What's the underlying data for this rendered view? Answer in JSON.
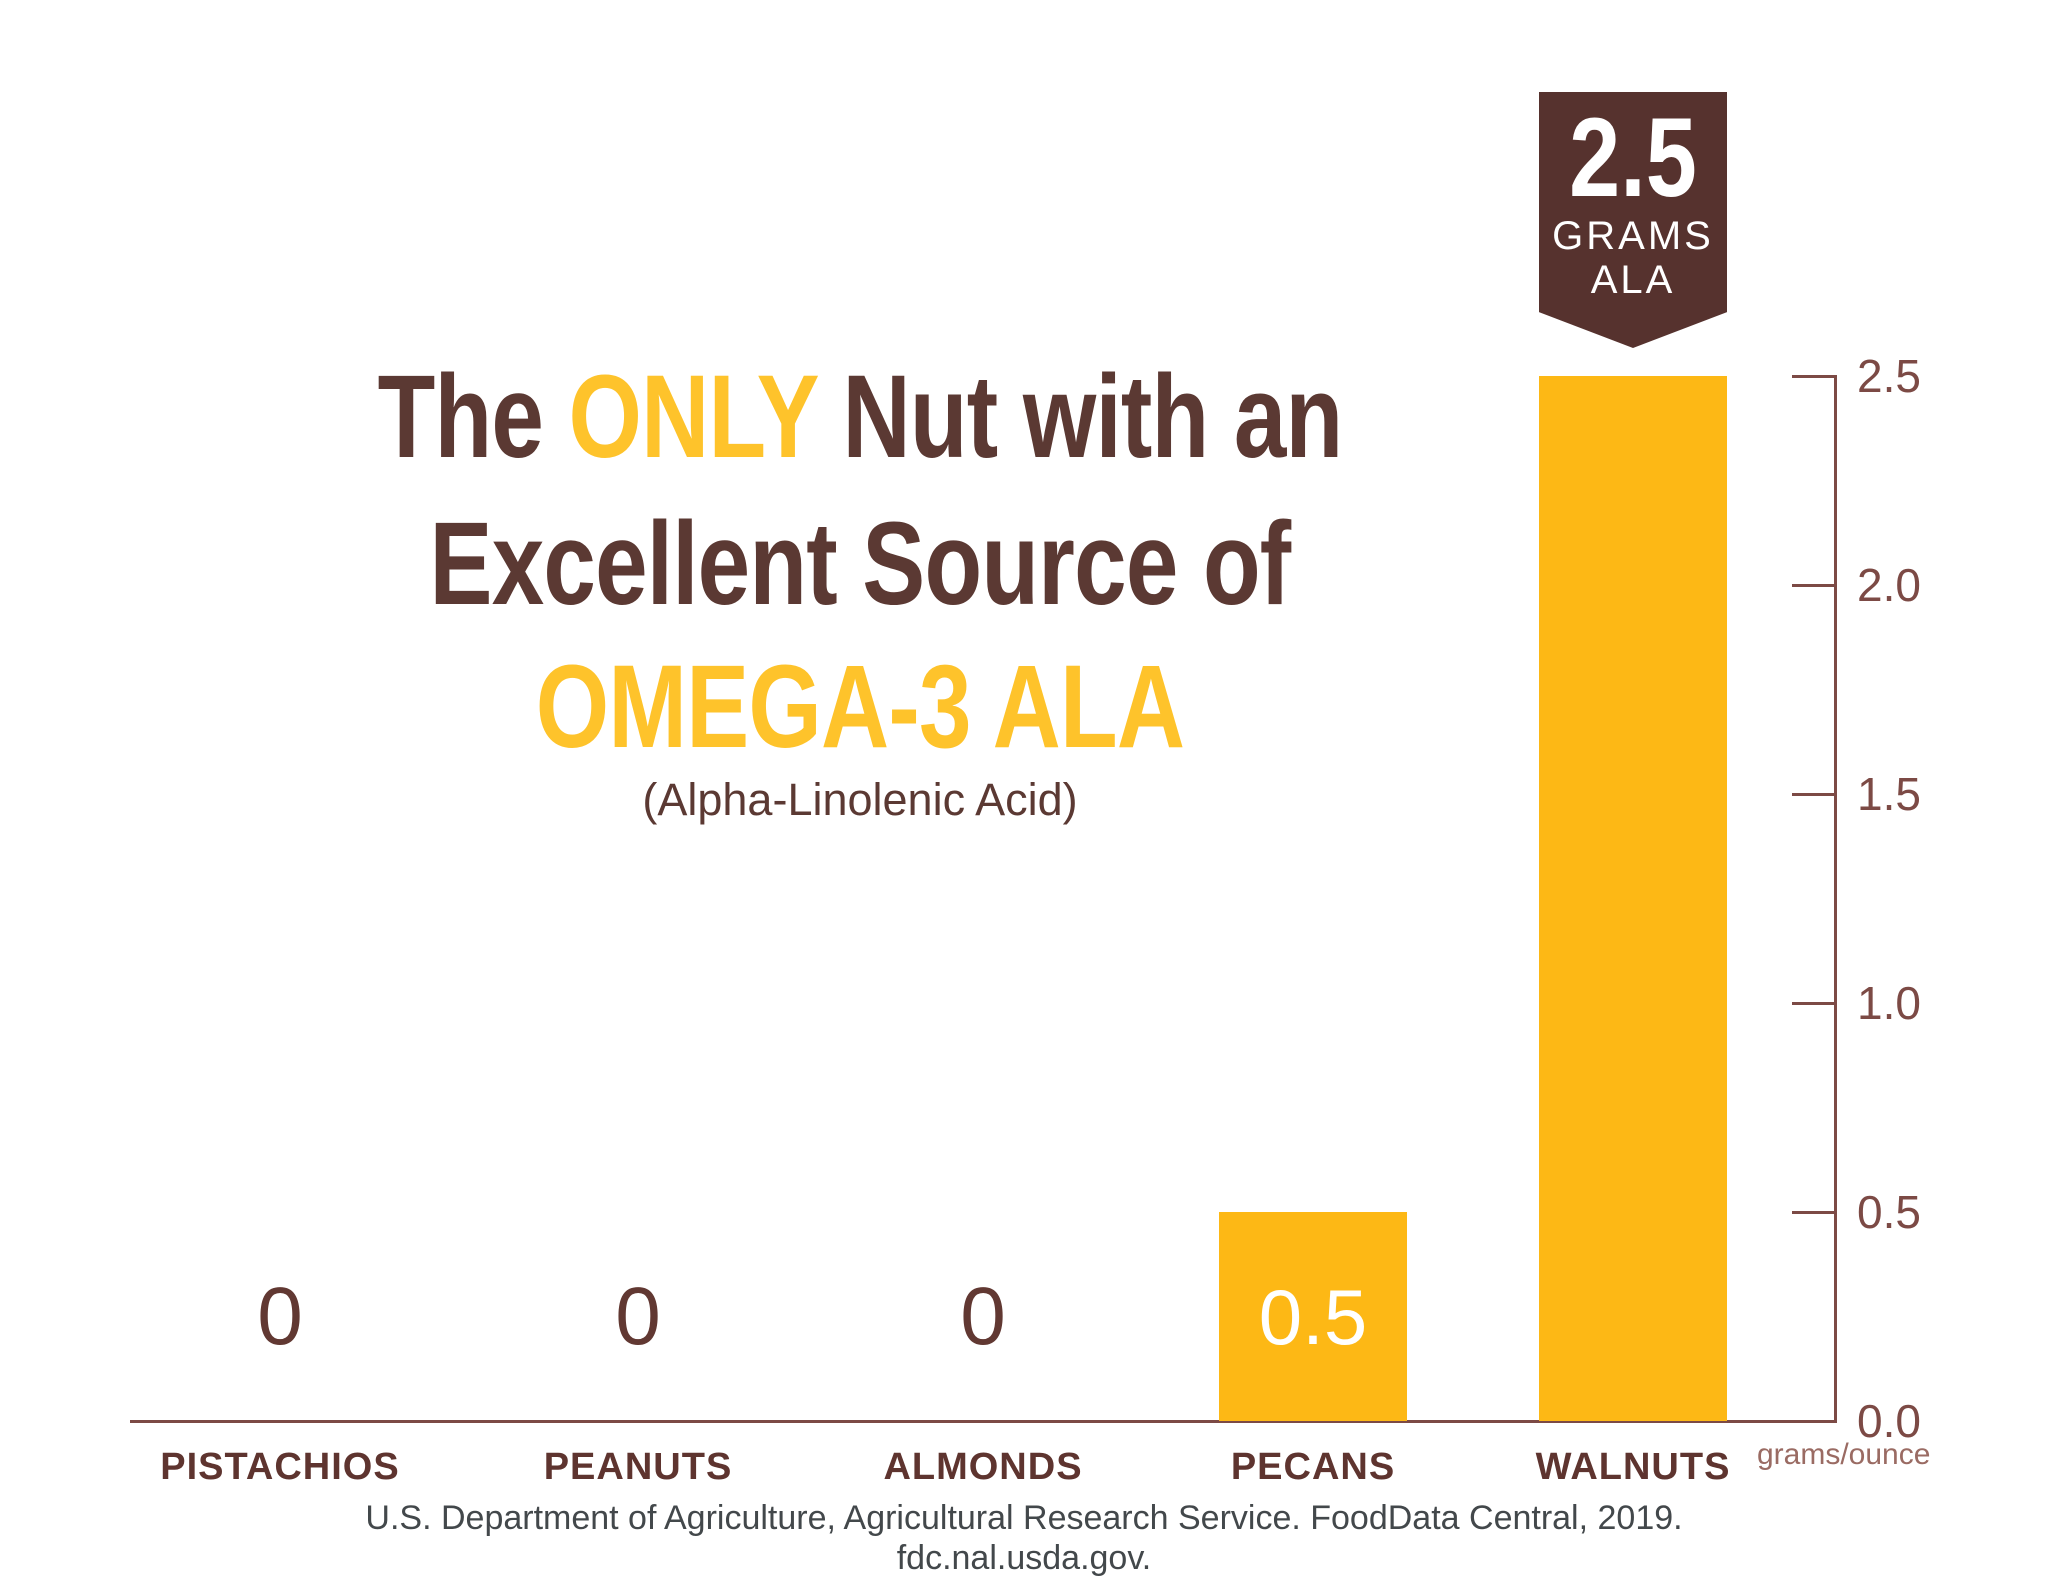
{
  "title": {
    "line1_pre": "The ",
    "line1_accent": "ONLY",
    "line1_post": " Nut with an",
    "line2": "Excellent Source of",
    "line3": "OMEGA-3 ALA",
    "subtitle": "(Alpha-Linolenic Acid)"
  },
  "badge": {
    "value": "2.5",
    "unit_line1": "GRAMS",
    "unit_line2": "ALA"
  },
  "axis": {
    "unit_label": "grams/ounce"
  },
  "source": "U.S. Department of Agriculture, Agricultural Research Service. FoodData Central, 2019. fdc.nal.usda.gov.",
  "colors": {
    "bar_yellow": "#FDB815",
    "title_yellow": "#FEC32B",
    "badge_brown": "#56322E",
    "title_brown": "#5B3933",
    "axis_maroon": "#7C4A45",
    "zero_maroon": "#613832",
    "label_maroon": "#5E342F",
    "unit_maroon": "#9A6B63",
    "source_gray": "#43484B"
  },
  "chart_data": {
    "type": "bar",
    "title": "The ONLY Nut with an Excellent Source of OMEGA-3 ALA (Alpha-Linolenic Acid)",
    "categories": [
      "PISTACHIOS",
      "PEANUTS",
      "ALMONDS",
      "PECANS",
      "WALNUTS"
    ],
    "values": [
      0,
      0,
      0,
      0.5,
      2.5
    ],
    "value_display": [
      "0",
      "0",
      "0",
      "0.5",
      ""
    ],
    "walnuts_annotation": "2.5 GRAMS ALA",
    "xlabel": "",
    "ylabel": "grams/ounce",
    "ylim": [
      0,
      2.5
    ],
    "y_ticks": [
      2.5,
      2.0,
      1.5,
      1.0,
      0.5,
      0.0
    ],
    "grid": false,
    "legend": "none",
    "axis_side": "right",
    "bar_color": "#FDB815"
  }
}
